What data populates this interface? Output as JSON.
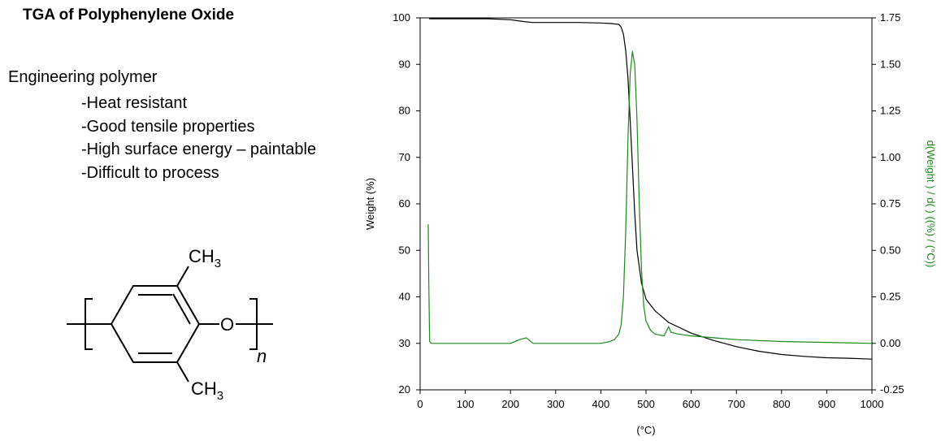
{
  "slide": {
    "title": "TGA of Polyphenylene Oxide",
    "heading": "Engineering polymer",
    "bullets": [
      "-Heat resistant",
      "-Good tensile properties",
      "-High surface energy – paintable",
      "-Difficult to process"
    ]
  },
  "structure": {
    "substituent_top": "CH",
    "substituent_top_sub": "3",
    "substituent_bottom": "CH",
    "substituent_bottom_sub": "3",
    "oxygen": "O",
    "repeat_index": "n"
  },
  "chart_data": {
    "type": "line",
    "title": "",
    "xlabel": "(°C)",
    "ylabel": "Weight  (%)",
    "y2label": "d(Weight ) / d(    )  ((%) / (°C))",
    "xlim": [
      0,
      1000
    ],
    "ylim": [
      20,
      100
    ],
    "y2lim": [
      -0.25,
      1.75
    ],
    "x_ticks": [
      "0",
      "100",
      "200",
      "300",
      "400",
      "500",
      "600",
      "700",
      "800",
      "900",
      "1000"
    ],
    "y_ticks": [
      "20",
      "30",
      "40",
      "50",
      "60",
      "70",
      "80",
      "90",
      "100"
    ],
    "y2_ticks": [
      "-0.25",
      "0.00",
      "0.25",
      "0.50",
      "0.75",
      "1.00",
      "1.25",
      "1.50",
      "1.75"
    ],
    "grid": false,
    "series": [
      {
        "axis": "left",
        "color": "#000000",
        "x": [
          20,
          100,
          150,
          200,
          230,
          250,
          300,
          350,
          400,
          420,
          440,
          445,
          450,
          455,
          460,
          465,
          470,
          475,
          480,
          490,
          500,
          520,
          550,
          600,
          650,
          700,
          750,
          800,
          850,
          900,
          950,
          1000
        ],
        "y": [
          99.8,
          99.8,
          99.8,
          99.6,
          99.2,
          99.0,
          99.0,
          99.0,
          98.9,
          98.8,
          98.6,
          98.0,
          96.5,
          93.0,
          87.0,
          78.0,
          68.0,
          58.0,
          50.0,
          43.0,
          39.5,
          37.0,
          34.5,
          32.2,
          30.6,
          29.3,
          28.3,
          27.6,
          27.2,
          26.9,
          26.8,
          26.6
        ]
      },
      {
        "axis": "right",
        "color": "#1a8a1a",
        "x": [
          18,
          19,
          21,
          25,
          40,
          100,
          200,
          220,
          235,
          250,
          300,
          400,
          420,
          430,
          440,
          445,
          450,
          455,
          460,
          465,
          468,
          470,
          472,
          475,
          480,
          485,
          490,
          495,
          500,
          510,
          520,
          540,
          550,
          555,
          570,
          600,
          650,
          700,
          800,
          900,
          1000
        ],
        "y": [
          0.64,
          0.35,
          0.01,
          0.0,
          0.0,
          0.0,
          0.0,
          0.02,
          0.03,
          0.0,
          0.0,
          0.0,
          0.01,
          0.02,
          0.05,
          0.1,
          0.25,
          0.6,
          1.1,
          1.45,
          1.52,
          1.57,
          1.54,
          1.5,
          1.2,
          0.75,
          0.4,
          0.2,
          0.12,
          0.07,
          0.05,
          0.04,
          0.09,
          0.06,
          0.05,
          0.04,
          0.03,
          0.02,
          0.01,
          0.005,
          0.0
        ]
      }
    ]
  }
}
